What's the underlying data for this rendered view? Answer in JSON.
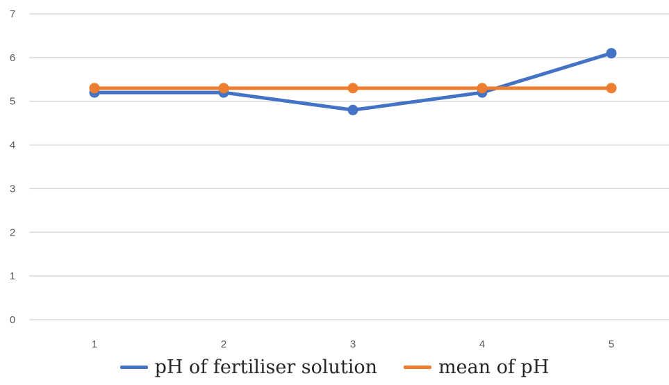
{
  "chart_data": {
    "type": "line",
    "x": [
      1,
      2,
      3,
      4,
      5
    ],
    "series": [
      {
        "name": "pH of fertiliser solution",
        "values": [
          5.2,
          5.2,
          4.8,
          5.2,
          6.1
        ],
        "color": "#4472C4"
      },
      {
        "name": "mean of pH",
        "values": [
          5.3,
          5.3,
          5.3,
          5.3,
          5.3
        ],
        "color": "#ED7D31"
      }
    ],
    "title": "",
    "xlabel": "",
    "ylabel": "",
    "ylim": [
      0,
      7
    ],
    "yticks": [
      0,
      1,
      2,
      3,
      4,
      5,
      6,
      7
    ],
    "xticks": [
      "1",
      "2",
      "3",
      "4",
      "5"
    ],
    "grid": true,
    "gridColor": "#d9d9d9",
    "legend": "bottom"
  }
}
